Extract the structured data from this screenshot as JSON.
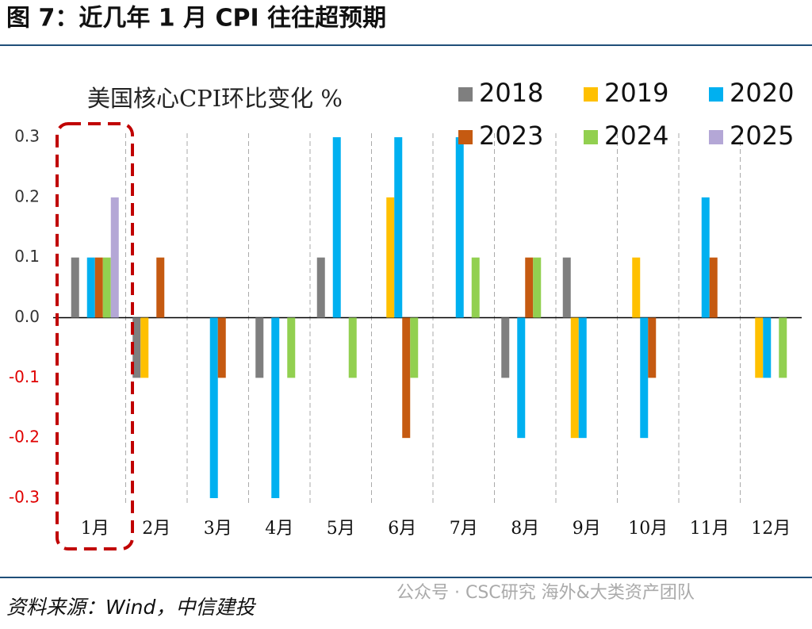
{
  "header": {
    "title": "图 7：近几年 1 月 CPI 往往超预期"
  },
  "chart_data": {
    "type": "bar",
    "title": "美国核心CPI环比变化 %",
    "categories": [
      "1月",
      "2月",
      "3月",
      "4月",
      "5月",
      "6月",
      "7月",
      "8月",
      "9月",
      "10月",
      "11月",
      "12月"
    ],
    "series": [
      {
        "name": "2018",
        "color": "#7f7f7f",
        "values": [
          0.1,
          -0.1,
          0,
          -0.1,
          0.1,
          0,
          0,
          -0.1,
          0.1,
          0,
          0,
          0
        ]
      },
      {
        "name": "2019",
        "color": "#ffc000",
        "values": [
          0,
          -0.1,
          0,
          0,
          0,
          0.2,
          0,
          0,
          -0.2,
          0.1,
          0,
          -0.1
        ]
      },
      {
        "name": "2020",
        "color": "#00b0f0",
        "values": [
          0.1,
          0,
          -0.3,
          -0.3,
          0.3,
          0.3,
          0.3,
          -0.2,
          -0.2,
          -0.2,
          0.2,
          -0.1
        ]
      },
      {
        "name": "2023",
        "color": "#c55a11",
        "values": [
          0.1,
          0.1,
          -0.1,
          0,
          0,
          -0.2,
          0,
          0.1,
          0,
          -0.1,
          0.1,
          0
        ]
      },
      {
        "name": "2024",
        "color": "#92d050",
        "values": [
          0.1,
          0,
          0,
          -0.1,
          -0.1,
          -0.1,
          0.1,
          0.1,
          0,
          0,
          0,
          -0.1
        ]
      },
      {
        "name": "2025",
        "color": "#b4a7d6",
        "values": [
          0.2,
          null,
          null,
          null,
          null,
          null,
          null,
          null,
          null,
          null,
          null,
          null
        ]
      }
    ],
    "ylim": [
      -0.3,
      0.3
    ],
    "yticks": [
      -0.3,
      -0.2,
      -0.1,
      {
        "value": 0,
        "label": "0.0"
      },
      0.1,
      0.2,
      0.3
    ],
    "negative_tick_color": "#e00000",
    "highlight_color": "#c00000"
  },
  "footer": {
    "source": "资料来源：Wind，中信建投",
    "watermark": "公众号 · CSC研究 海外&大类资产团队"
  }
}
